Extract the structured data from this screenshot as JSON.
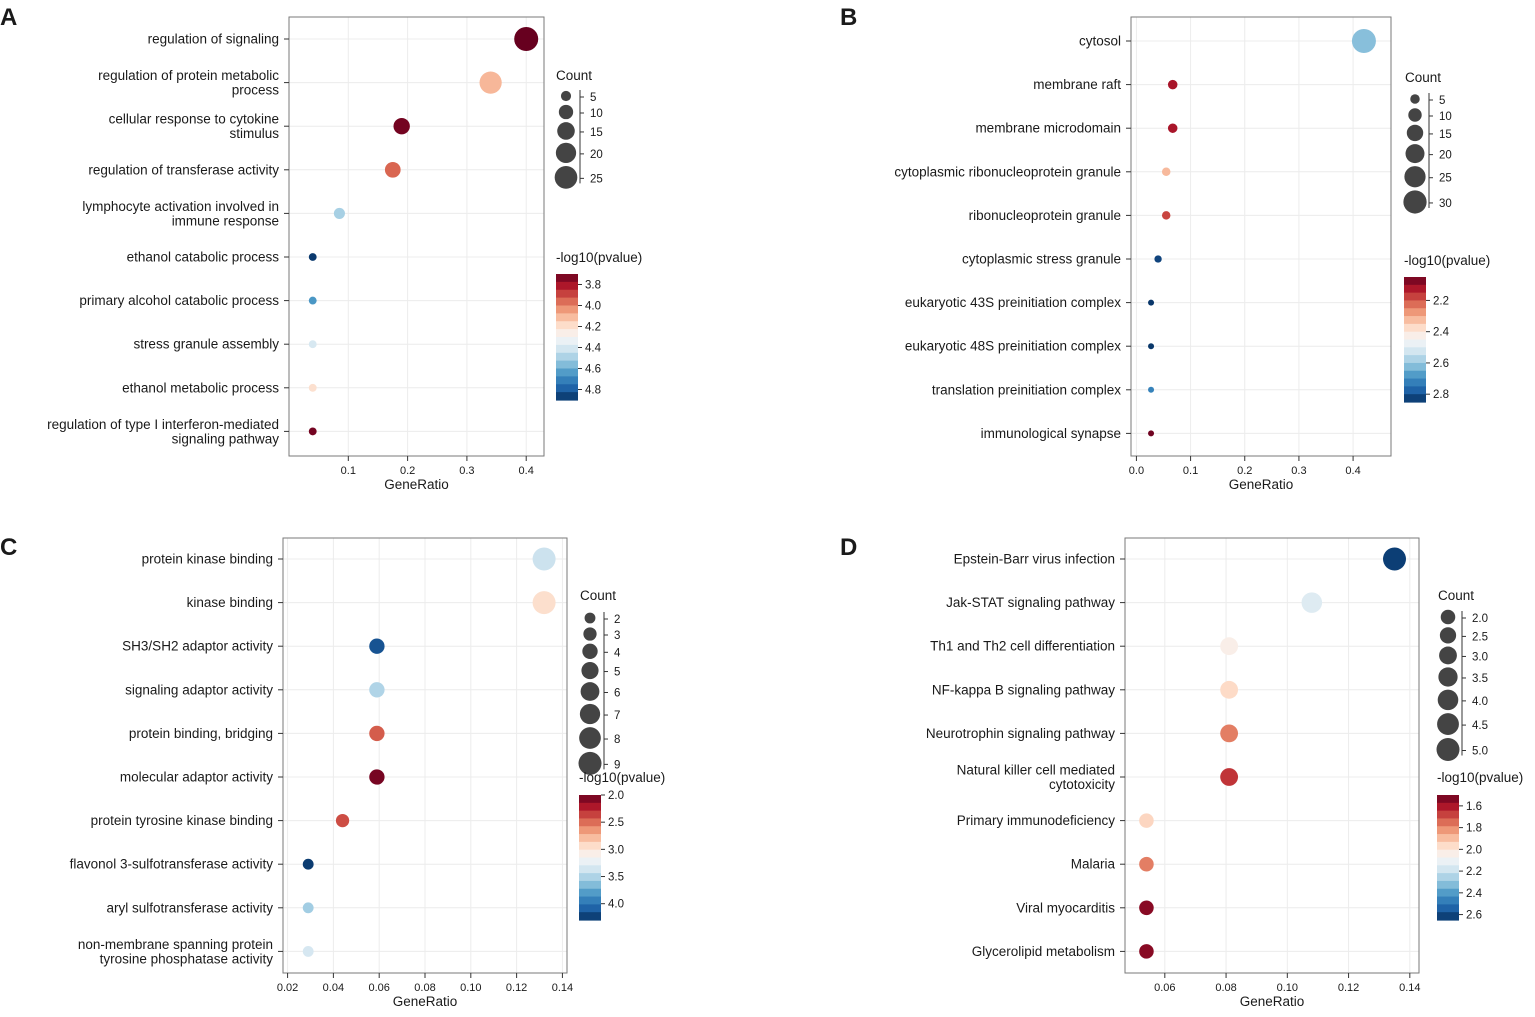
{
  "chart_data": [
    {
      "type": "scatter",
      "panel": "A",
      "xlabel": "GeneRatio",
      "xlim": [
        0,
        0.43
      ],
      "xticks": [
        0.1,
        0.2,
        0.3,
        0.4
      ],
      "tick_labels": [
        "0.1",
        "0.2",
        "0.3",
        "0.4"
      ],
      "terms": [
        {
          "lines": [
            "regulation of signaling"
          ],
          "x": 0.4,
          "count": 28,
          "p": 3.7
        },
        {
          "lines": [
            "regulation of protein metabolic",
            "process"
          ],
          "x": 0.34,
          "count": 24,
          "p": 4.1
        },
        {
          "lines": [
            "cellular response to cytokine",
            "stimulus"
          ],
          "x": 0.19,
          "count": 13,
          "p": 3.72
        },
        {
          "lines": [
            "regulation of transferase activity"
          ],
          "x": 0.175,
          "count": 12,
          "p": 3.95
        },
        {
          "lines": [
            "lymphocyte activation involved in",
            "immune response"
          ],
          "x": 0.085,
          "count": 6,
          "p": 4.5
        },
        {
          "lines": [
            "ethanol catabolic process"
          ],
          "x": 0.04,
          "count": 3,
          "p": 4.88
        },
        {
          "lines": [
            "primary alcohol catabolic process"
          ],
          "x": 0.04,
          "count": 3,
          "p": 4.65
        },
        {
          "lines": [
            "stress granule assembly"
          ],
          "x": 0.04,
          "count": 3,
          "p": 4.4
        },
        {
          "lines": [
            "ethanol metabolic process"
          ],
          "x": 0.04,
          "count": 3,
          "p": 4.2
        },
        {
          "lines": [
            "regulation of type I interferon-mediated",
            "signaling pathway"
          ],
          "x": 0.04,
          "count": 3,
          "p": 3.72
        }
      ],
      "count_legend": {
        "title": "Count",
        "values": [
          5,
          10,
          15,
          20,
          25
        ],
        "labels": [
          "5",
          "10",
          "15",
          "20",
          "25"
        ]
      },
      "color_legend": {
        "title": "-log10(pvalue)",
        "min": 3.7,
        "max": 4.9,
        "ticks": [
          3.8,
          4.0,
          4.2,
          4.4,
          4.6,
          4.8
        ],
        "labels": [
          "3.8",
          "4.0",
          "4.2",
          "4.4",
          "4.6",
          "4.8"
        ],
        "high_is_red": false
      }
    },
    {
      "type": "scatter",
      "panel": "B",
      "xlabel": "GeneRatio",
      "xlim": [
        -0.01,
        0.47
      ],
      "xticks": [
        0.0,
        0.1,
        0.2,
        0.3,
        0.4
      ],
      "tick_labels": [
        "0.0",
        "0.1",
        "0.2",
        "0.3",
        "0.4"
      ],
      "terms": [
        {
          "lines": [
            "cytosol"
          ],
          "x": 0.42,
          "count": 32,
          "p": 2.62
        },
        {
          "lines": [
            "membrane raft"
          ],
          "x": 0.067,
          "count": 5,
          "p": 2.12
        },
        {
          "lines": [
            "membrane microdomain"
          ],
          "x": 0.067,
          "count": 5,
          "p": 2.12
        },
        {
          "lines": [
            "cytoplasmic ribonucleoprotein granule"
          ],
          "x": 0.055,
          "count": 4,
          "p": 2.32
        },
        {
          "lines": [
            "ribonucleoprotein granule"
          ],
          "x": 0.055,
          "count": 4,
          "p": 2.18
        },
        {
          "lines": [
            "cytoplasmic stress granule"
          ],
          "x": 0.04,
          "count": 3,
          "p": 2.82
        },
        {
          "lines": [
            "eukaryotic 43S preinitiation complex"
          ],
          "x": 0.027,
          "count": 2,
          "p": 2.84
        },
        {
          "lines": [
            "eukaryotic 48S preinitiation complex"
          ],
          "x": 0.027,
          "count": 2,
          "p": 2.84
        },
        {
          "lines": [
            "translation preinitiation complex"
          ],
          "x": 0.027,
          "count": 2,
          "p": 2.72
        },
        {
          "lines": [
            "immunological synapse"
          ],
          "x": 0.027,
          "count": 2,
          "p": 2.06
        }
      ],
      "count_legend": {
        "title": "Count",
        "values": [
          5,
          10,
          15,
          20,
          25,
          30
        ],
        "labels": [
          "5",
          "10",
          "15",
          "20",
          "25",
          "30"
        ]
      },
      "color_legend": {
        "title": "-log10(pvalue)",
        "min": 2.05,
        "max": 2.85,
        "ticks": [
          2.2,
          2.4,
          2.6,
          2.8
        ],
        "labels": [
          "2.2",
          "2.4",
          "2.6",
          "2.8"
        ],
        "high_is_red": false
      }
    },
    {
      "type": "scatter",
      "panel": "C",
      "xlabel": "GeneRatio",
      "xlim": [
        0.018,
        0.142
      ],
      "xticks": [
        0.02,
        0.04,
        0.06,
        0.08,
        0.1,
        0.12,
        0.14
      ],
      "tick_labels": [
        "0.02",
        "0.04",
        "0.06",
        "0.08",
        "0.10",
        "0.12",
        "0.14"
      ],
      "terms": [
        {
          "lines": [
            "protein kinase binding"
          ],
          "x": 0.132,
          "count": 9,
          "p": 3.4
        },
        {
          "lines": [
            "kinase binding"
          ],
          "x": 0.132,
          "count": 9,
          "p": 2.95
        },
        {
          "lines": [
            "SH3/SH2 adaptor activity"
          ],
          "x": 0.059,
          "count": 4,
          "p": 4.15
        },
        {
          "lines": [
            "signaling adaptor activity"
          ],
          "x": 0.059,
          "count": 4,
          "p": 3.5
        },
        {
          "lines": [
            "protein binding, bridging"
          ],
          "x": 0.059,
          "count": 4,
          "p": 2.45
        },
        {
          "lines": [
            "molecular adaptor activity"
          ],
          "x": 0.059,
          "count": 4,
          "p": 2.05
        },
        {
          "lines": [
            "protein tyrosine kinase binding"
          ],
          "x": 0.044,
          "count": 3,
          "p": 2.4
        },
        {
          "lines": [
            "flavonol 3-sulfotransferase activity"
          ],
          "x": 0.029,
          "count": 2,
          "p": 4.25
        },
        {
          "lines": [
            "aryl sulfotransferase activity"
          ],
          "x": 0.029,
          "count": 2,
          "p": 3.55
        },
        {
          "lines": [
            "non-membrane spanning protein",
            "tyrosine phosphatase activity"
          ],
          "x": 0.029,
          "count": 2,
          "p": 3.35
        }
      ],
      "count_legend": {
        "title": "Count",
        "values": [
          2,
          3,
          4,
          5,
          6,
          7,
          8,
          9
        ],
        "labels": [
          "2",
          "3",
          "4",
          "5",
          "6",
          "7",
          "8",
          "9"
        ]
      },
      "color_legend": {
        "title": "-log10(pvalue)",
        "min": 2.0,
        "max": 4.3,
        "ticks": [
          2.0,
          2.5,
          3.0,
          3.5,
          4.0
        ],
        "labels": [
          "2.0",
          "2.5",
          "3.0",
          "3.5",
          "4.0"
        ],
        "high_is_red": false
      }
    },
    {
      "type": "scatter",
      "panel": "D",
      "xlabel": "GeneRatio",
      "xlim": [
        0.047,
        0.143
      ],
      "xticks": [
        0.06,
        0.08,
        0.1,
        0.12,
        0.14
      ],
      "tick_labels": [
        "0.06",
        "0.08",
        "0.10",
        "0.12",
        "0.14"
      ],
      "terms": [
        {
          "lines": [
            "Epstein-Barr virus infection"
          ],
          "x": 0.135,
          "count": 5,
          "p": 2.62
        },
        {
          "lines": [
            "Jak-STAT signaling pathway"
          ],
          "x": 0.108,
          "count": 4,
          "p": 2.15
        },
        {
          "lines": [
            "Th1 and Th2 cell differentiation"
          ],
          "x": 0.081,
          "count": 3,
          "p": 2.04
        },
        {
          "lines": [
            "NF-kappa B signaling pathway"
          ],
          "x": 0.081,
          "count": 3,
          "p": 1.96
        },
        {
          "lines": [
            "Neurotrophin signaling pathway"
          ],
          "x": 0.081,
          "count": 3,
          "p": 1.78
        },
        {
          "lines": [
            "Natural killer cell mediated",
            "cytotoxicity"
          ],
          "x": 0.081,
          "count": 3,
          "p": 1.66
        },
        {
          "lines": [
            "Primary immunodeficiency"
          ],
          "x": 0.054,
          "count": 2,
          "p": 1.95
        },
        {
          "lines": [
            "Malaria"
          ],
          "x": 0.054,
          "count": 2,
          "p": 1.78
        },
        {
          "lines": [
            "Viral myocarditis"
          ],
          "x": 0.054,
          "count": 2,
          "p": 1.55
        },
        {
          "lines": [
            "Glycerolipid metabolism"
          ],
          "x": 0.054,
          "count": 2,
          "p": 1.55
        }
      ],
      "count_legend": {
        "title": "Count",
        "values": [
          2.0,
          2.5,
          3.0,
          3.5,
          4.0,
          4.5,
          5.0
        ],
        "labels": [
          "2.0",
          "2.5",
          "3.0",
          "3.5",
          "4.0",
          "4.5",
          "5.0"
        ]
      },
      "color_legend": {
        "title": "-log10(pvalue)",
        "min": 1.5,
        "max": 2.65,
        "ticks": [
          1.6,
          1.8,
          2.0,
          2.2,
          2.4,
          2.6
        ],
        "labels": [
          "1.6",
          "1.8",
          "2.0",
          "2.2",
          "2.4",
          "2.6"
        ],
        "high_is_red": false
      }
    }
  ],
  "colors": {
    "palette": [
      "#67001f",
      "#b2182b",
      "#d6604d",
      "#f4a582",
      "#fddbc7",
      "#f7f7f7",
      "#d1e5f0",
      "#92c5de",
      "#4393c3",
      "#2166ac",
      "#053061"
    ],
    "dot_size_gray": "#444444",
    "grid": "#ececec",
    "frame": "#7a7a7a"
  }
}
